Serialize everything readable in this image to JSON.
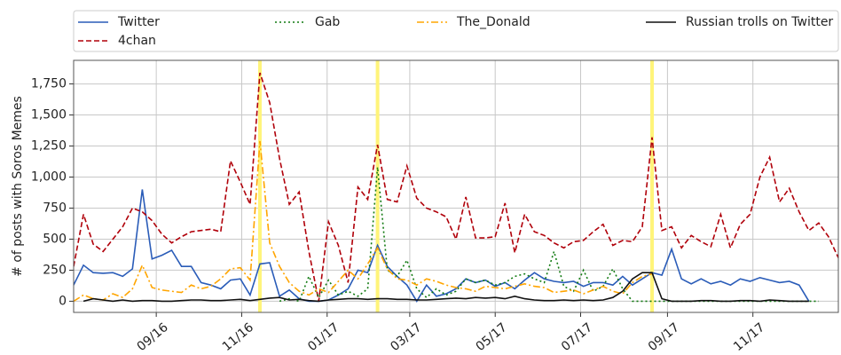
{
  "chart_data": {
    "type": "line",
    "ylabel": "# of posts with Soros Memes",
    "x": [
      3,
      10,
      17,
      24,
      31,
      38,
      45,
      52,
      59,
      66,
      73,
      80,
      87,
      94,
      101,
      108,
      115,
      122,
      129,
      136,
      143,
      150,
      157,
      164,
      171,
      178,
      185,
      192,
      199,
      206,
      213,
      220,
      227,
      234,
      241,
      248,
      255,
      262,
      269,
      276,
      283,
      290,
      297,
      304,
      311,
      318,
      325,
      332,
      339,
      346,
      353,
      360,
      367,
      374,
      381,
      388,
      395,
      402,
      409,
      416,
      423,
      430,
      437,
      444,
      451,
      458,
      465,
      472,
      479,
      486,
      493,
      500,
      507,
      514,
      521,
      528,
      535,
      542,
      549
    ],
    "xlim": [
      3,
      549
    ],
    "xticks": [
      {
        "value": 62,
        "label": "09/16"
      },
      {
        "value": 123,
        "label": "11/16"
      },
      {
        "value": 184,
        "label": "01/17"
      },
      {
        "value": 243,
        "label": "03/17"
      },
      {
        "value": 304,
        "label": "05/17"
      },
      {
        "value": 365,
        "label": "07/17"
      },
      {
        "value": 427,
        "label": "09/17"
      },
      {
        "value": 488,
        "label": "11/17"
      }
    ],
    "ylim": [
      -90,
      1940
    ],
    "yticks": [
      0,
      250,
      500,
      750,
      {
        "value": 1000,
        "label": "1,000"
      },
      {
        "value": 1250,
        "label": "1,250"
      },
      {
        "value": 1500,
        "label": "1,500"
      },
      {
        "value": 1750,
        "label": "1,750"
      }
    ],
    "grid": true,
    "vlines": [
      136,
      220,
      416
    ],
    "vline_color": "#fff47a",
    "series": [
      {
        "name": "Twitter",
        "color": "#2a5cb8",
        "style": "solid",
        "values": [
          130,
          290,
          230,
          225,
          230,
          200,
          260,
          900,
          340,
          370,
          410,
          280,
          280,
          150,
          130,
          100,
          170,
          180,
          50,
          300,
          310,
          40,
          90,
          20,
          0,
          0,
          10,
          50,
          100,
          250,
          230,
          450,
          280,
          200,
          130,
          0,
          130,
          40,
          60,
          100,
          180,
          150,
          170,
          120,
          150,
          100,
          170,
          230,
          180,
          160,
          150,
          160,
          120,
          150,
          150,
          130,
          200,
          130,
          180,
          230,
          210,
          420,
          180,
          140,
          180,
          140,
          160,
          130,
          180,
          160,
          190,
          170,
          150,
          160,
          130,
          0,
          null,
          null,
          null
        ]
      },
      {
        "name": "4chan",
        "color": "#b0000a",
        "style": "dashed",
        "values": [
          280,
          700,
          460,
          400,
          500,
          600,
          750,
          720,
          650,
          540,
          470,
          520,
          560,
          570,
          580,
          560,
          1130,
          960,
          780,
          1840,
          1600,
          1150,
          780,
          880,
          400,
          0,
          640,
          450,
          150,
          920,
          820,
          1260,
          820,
          800,
          1090,
          830,
          750,
          720,
          680,
          500,
          840,
          510,
          510,
          520,
          790,
          390,
          700,
          560,
          530,
          470,
          430,
          480,
          490,
          560,
          620,
          450,
          490,
          480,
          600,
          1320,
          570,
          600,
          430,
          530,
          480,
          440,
          700,
          430,
          620,
          700,
          1000,
          1160,
          800,
          910,
          720,
          570,
          630,
          520,
          350
        ]
      },
      {
        "name": "Gab",
        "color": "#117a11",
        "style": "dotted",
        "values": [
          null,
          null,
          null,
          null,
          null,
          null,
          null,
          null,
          null,
          null,
          null,
          null,
          null,
          null,
          null,
          null,
          null,
          null,
          null,
          null,
          null,
          0,
          20,
          0,
          200,
          30,
          170,
          50,
          80,
          40,
          100,
          1080,
          250,
          200,
          330,
          100,
          30,
          100,
          50,
          80,
          180,
          150,
          170,
          130,
          150,
          200,
          220,
          180,
          150,
          400,
          120,
          80,
          250,
          80,
          120,
          260,
          100,
          0,
          0,
          0,
          0,
          0,
          0,
          0,
          0,
          0,
          0,
          0,
          0,
          0,
          0,
          0,
          0,
          0,
          0,
          0,
          0,
          null,
          null
        ]
      },
      {
        "name": "The_Donald",
        "color": "#ffa500",
        "style": "dashdot",
        "values": [
          0,
          50,
          20,
          10,
          60,
          30,
          100,
          290,
          110,
          90,
          80,
          70,
          130,
          100,
          120,
          180,
          260,
          270,
          170,
          1290,
          470,
          280,
          150,
          80,
          50,
          100,
          70,
          160,
          250,
          180,
          300,
          430,
          260,
          180,
          170,
          130,
          180,
          160,
          130,
          110,
          100,
          80,
          120,
          110,
          100,
          120,
          140,
          120,
          110,
          70,
          80,
          90,
          60,
          90,
          120,
          80,
          60,
          150,
          200,
          220,
          null,
          null,
          null,
          null,
          null,
          null,
          null,
          null,
          null,
          null,
          null,
          null,
          null,
          null,
          null,
          null,
          null,
          null,
          null
        ]
      },
      {
        "name": "Russian trolls on Twitter",
        "color": "#111111",
        "style": "solid",
        "values": [
          null,
          0,
          20,
          10,
          0,
          10,
          0,
          5,
          5,
          0,
          0,
          5,
          10,
          10,
          5,
          5,
          10,
          15,
          5,
          15,
          25,
          30,
          10,
          15,
          5,
          0,
          10,
          15,
          20,
          20,
          15,
          20,
          20,
          15,
          15,
          10,
          10,
          15,
          20,
          25,
          20,
          30,
          25,
          30,
          20,
          40,
          20,
          10,
          5,
          5,
          10,
          5,
          10,
          5,
          10,
          30,
          80,
          180,
          230,
          230,
          20,
          0,
          0,
          0,
          5,
          5,
          0,
          0,
          5,
          5,
          0,
          10,
          5,
          0,
          0,
          0,
          null,
          null,
          null
        ]
      }
    ]
  }
}
